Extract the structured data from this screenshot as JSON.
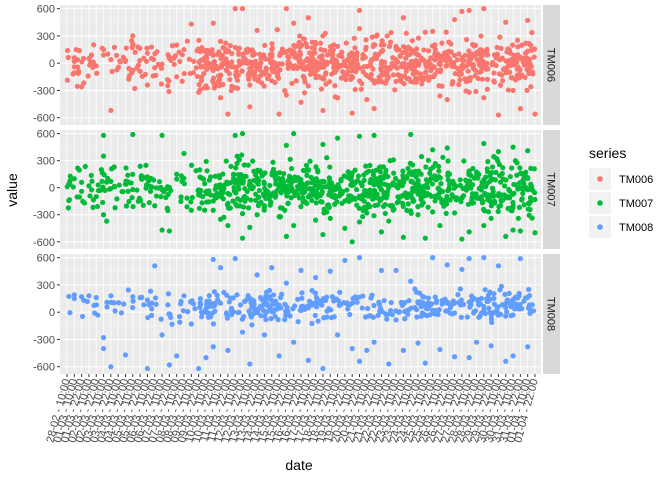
{
  "chart_data": {
    "type": "scatter",
    "xlabel": "date",
    "ylabel": "value",
    "ylim": [
      -680,
      640
    ],
    "y_ticks": [
      -600,
      -300,
      0,
      300,
      600
    ],
    "x_tick_labels": [
      "28-02 - 10:00",
      "01-03 - 10:00",
      "01-03 - 22:00",
      "02-03 - 10:00",
      "02-03 - 22:00",
      "03-03 - 10:00",
      "03-03 - 22:00",
      "04-03 - 10:00",
      "04-03 - 22:00",
      "05-03 - 10:00",
      "05-03 - 22:00",
      "06-03 - 10:00",
      "06-03 - 22:00",
      "07-03 - 10:00",
      "07-03 - 22:00",
      "08-03 - 10:00",
      "08-03 - 22:00",
      "09-03 - 10:00",
      "09-03 - 22:00",
      "10-03 - 10:00",
      "10-03 - 22:00",
      "11-03 - 10:00",
      "11-03 - 22:00",
      "12-03 - 10:00",
      "12-03 - 22:00",
      "13-03 - 10:00",
      "13-03 - 22:00",
      "14-03 - 10:00",
      "14-03 - 22:00",
      "15-03 - 10:00",
      "15-03 - 22:00",
      "16-03 - 10:00",
      "16-03 - 22:00",
      "17-03 - 10:00",
      "17-03 - 22:00",
      "18-03 - 10:00",
      "18-03 - 22:00",
      "19-03 - 10:00",
      "19-03 - 22:00",
      "20-03 - 10:00",
      "20-03 - 22:00",
      "21-03 - 10:00",
      "21-03 - 22:00",
      "22-03 - 10:00",
      "22-03 - 22:00",
      "23-03 - 10:00",
      "23-03 - 22:00",
      "24-03 - 10:00",
      "24-03 - 22:00",
      "25-03 - 10:00",
      "25-03 - 22:00",
      "26-03 - 10:00",
      "26-03 - 22:00",
      "27-03 - 10:00",
      "27-03 - 22:00",
      "28-03 - 10:00",
      "28-03 - 22:00",
      "29-03 - 10:00",
      "29-03 - 22:00",
      "30-03 - 10:00",
      "30-03 - 22:00",
      "31-03 - 10:00",
      "31-03 - 22:00",
      "01-04 - 10:00",
      "01-04 - 22:00"
    ],
    "facets": [
      "TM006",
      "TM007",
      "TM008"
    ],
    "legend": {
      "title": "series",
      "position": "right"
    },
    "series": [
      {
        "name": "TM006",
        "color": "#F8766D",
        "points": [
          [
            1,
            20
          ],
          [
            1,
            60
          ],
          [
            1,
            -40
          ],
          [
            2,
            -260
          ],
          [
            3,
            50
          ],
          [
            4,
            -30
          ],
          [
            5,
            90
          ],
          [
            5,
            150
          ],
          [
            6,
            -520
          ],
          [
            6,
            40
          ],
          [
            8,
            20
          ],
          [
            9,
            300
          ],
          [
            9,
            -80
          ],
          [
            10,
            -90
          ],
          [
            11,
            110
          ],
          [
            11,
            -240
          ],
          [
            12,
            -50
          ],
          [
            13,
            -10
          ],
          [
            14,
            70
          ],
          [
            15,
            200
          ],
          [
            15,
            -150
          ],
          [
            16,
            150
          ],
          [
            17,
            430
          ],
          [
            18,
            -320
          ],
          [
            19,
            -250
          ],
          [
            20,
            440
          ],
          [
            21,
            240
          ],
          [
            21,
            -380
          ],
          [
            22,
            -560
          ],
          [
            23,
            600
          ],
          [
            23,
            -270
          ],
          [
            24,
            600
          ],
          [
            25,
            -480
          ],
          [
            25,
            -240
          ],
          [
            26,
            360
          ],
          [
            27,
            -120
          ],
          [
            28,
            150
          ],
          [
            28,
            -60
          ],
          [
            29,
            -560
          ],
          [
            30,
            600
          ],
          [
            30,
            -350
          ],
          [
            31,
            440
          ],
          [
            32,
            -430
          ],
          [
            33,
            500
          ],
          [
            33,
            -250
          ],
          [
            35,
            300
          ],
          [
            35,
            -520
          ],
          [
            37,
            -380
          ],
          [
            39,
            -550
          ],
          [
            40,
            580
          ],
          [
            40,
            380
          ],
          [
            41,
            -400
          ],
          [
            42,
            -500
          ],
          [
            43,
            200
          ],
          [
            45,
            -200
          ],
          [
            46,
            500
          ],
          [
            47,
            -200
          ],
          [
            48,
            -170
          ],
          [
            49,
            340
          ],
          [
            50,
            350
          ],
          [
            51,
            -360
          ],
          [
            52,
            -400
          ],
          [
            53,
            480
          ],
          [
            54,
            570
          ],
          [
            55,
            580
          ],
          [
            55,
            -320
          ],
          [
            57,
            600
          ],
          [
            57,
            -380
          ],
          [
            59,
            -570
          ],
          [
            60,
            450
          ],
          [
            61,
            -300
          ],
          [
            62,
            -500
          ],
          [
            63,
            470
          ],
          [
            64,
            -560
          ]
        ]
      },
      {
        "name": "TM007",
        "color": "#00BA38",
        "points": [
          [
            1,
            100
          ],
          [
            2,
            60
          ],
          [
            2,
            -40
          ],
          [
            3,
            20
          ],
          [
            4,
            -100
          ],
          [
            5,
            580
          ],
          [
            5,
            350
          ],
          [
            5,
            -300
          ],
          [
            6,
            70
          ],
          [
            8,
            40
          ],
          [
            9,
            590
          ],
          [
            9,
            -20
          ],
          [
            10,
            -130
          ],
          [
            11,
            120
          ],
          [
            12,
            -200
          ],
          [
            13,
            580
          ],
          [
            13,
            -470
          ],
          [
            14,
            -480
          ],
          [
            15,
            150
          ],
          [
            16,
            380
          ],
          [
            17,
            -250
          ],
          [
            18,
            -80
          ],
          [
            19,
            -50
          ],
          [
            20,
            -250
          ],
          [
            21,
            -350
          ],
          [
            22,
            -420
          ],
          [
            23,
            580
          ],
          [
            24,
            600
          ],
          [
            24,
            -560
          ],
          [
            25,
            -440
          ],
          [
            26,
            -300
          ],
          [
            27,
            -200
          ],
          [
            29,
            -320
          ],
          [
            30,
            470
          ],
          [
            30,
            -540
          ],
          [
            31,
            600
          ],
          [
            31,
            -420
          ],
          [
            33,
            200
          ],
          [
            34,
            -360
          ],
          [
            35,
            480
          ],
          [
            35,
            -520
          ],
          [
            36,
            -340
          ],
          [
            37,
            550
          ],
          [
            38,
            -450
          ],
          [
            39,
            -600
          ],
          [
            40,
            570
          ],
          [
            40,
            -380
          ],
          [
            41,
            -280
          ],
          [
            42,
            580
          ],
          [
            43,
            -490
          ],
          [
            44,
            -370
          ],
          [
            46,
            -550
          ],
          [
            47,
            590
          ],
          [
            48,
            -300
          ],
          [
            49,
            -560
          ],
          [
            50,
            420
          ],
          [
            51,
            -420
          ],
          [
            52,
            440
          ],
          [
            53,
            -280
          ],
          [
            54,
            -570
          ],
          [
            55,
            -490
          ],
          [
            57,
            490
          ],
          [
            57,
            -420
          ],
          [
            58,
            -340
          ],
          [
            59,
            400
          ],
          [
            60,
            -540
          ],
          [
            61,
            450
          ],
          [
            61,
            -470
          ],
          [
            62,
            -480
          ],
          [
            63,
            410
          ],
          [
            64,
            -500
          ]
        ]
      },
      {
        "name": "TM008",
        "color": "#619CFF",
        "points": [
          [
            1,
            150
          ],
          [
            1,
            190
          ],
          [
            2,
            170
          ],
          [
            3,
            180
          ],
          [
            4,
            160
          ],
          [
            5,
            -280
          ],
          [
            5,
            -400
          ],
          [
            6,
            180
          ],
          [
            6,
            -600
          ],
          [
            8,
            -470
          ],
          [
            9,
            170
          ],
          [
            10,
            160
          ],
          [
            11,
            -620
          ],
          [
            12,
            510
          ],
          [
            13,
            -250
          ],
          [
            14,
            -580
          ],
          [
            15,
            -480
          ],
          [
            16,
            180
          ],
          [
            17,
            -130
          ],
          [
            18,
            -620
          ],
          [
            19,
            -500
          ],
          [
            20,
            580
          ],
          [
            20,
            -380
          ],
          [
            21,
            490
          ],
          [
            22,
            -420
          ],
          [
            23,
            590
          ],
          [
            24,
            -220
          ],
          [
            25,
            -570
          ],
          [
            26,
            410
          ],
          [
            27,
            -250
          ],
          [
            28,
            490
          ],
          [
            29,
            -480
          ],
          [
            30,
            320
          ],
          [
            31,
            -330
          ],
          [
            32,
            460
          ],
          [
            33,
            -530
          ],
          [
            34,
            380
          ],
          [
            35,
            -620
          ],
          [
            36,
            450
          ],
          [
            37,
            -250
          ],
          [
            38,
            570
          ],
          [
            39,
            -400
          ],
          [
            40,
            600
          ],
          [
            40,
            -540
          ],
          [
            41,
            -420
          ],
          [
            42,
            -330
          ],
          [
            43,
            460
          ],
          [
            44,
            -570
          ],
          [
            45,
            460
          ],
          [
            46,
            -420
          ],
          [
            47,
            340
          ],
          [
            48,
            -340
          ],
          [
            49,
            -560
          ],
          [
            50,
            600
          ],
          [
            51,
            -410
          ],
          [
            52,
            520
          ],
          [
            53,
            -490
          ],
          [
            54,
            470
          ],
          [
            55,
            590
          ],
          [
            55,
            -500
          ],
          [
            56,
            -330
          ],
          [
            57,
            600
          ],
          [
            58,
            -370
          ],
          [
            59,
            510
          ],
          [
            60,
            -540
          ],
          [
            61,
            -480
          ],
          [
            62,
            590
          ],
          [
            63,
            -380
          ]
        ]
      }
    ]
  }
}
